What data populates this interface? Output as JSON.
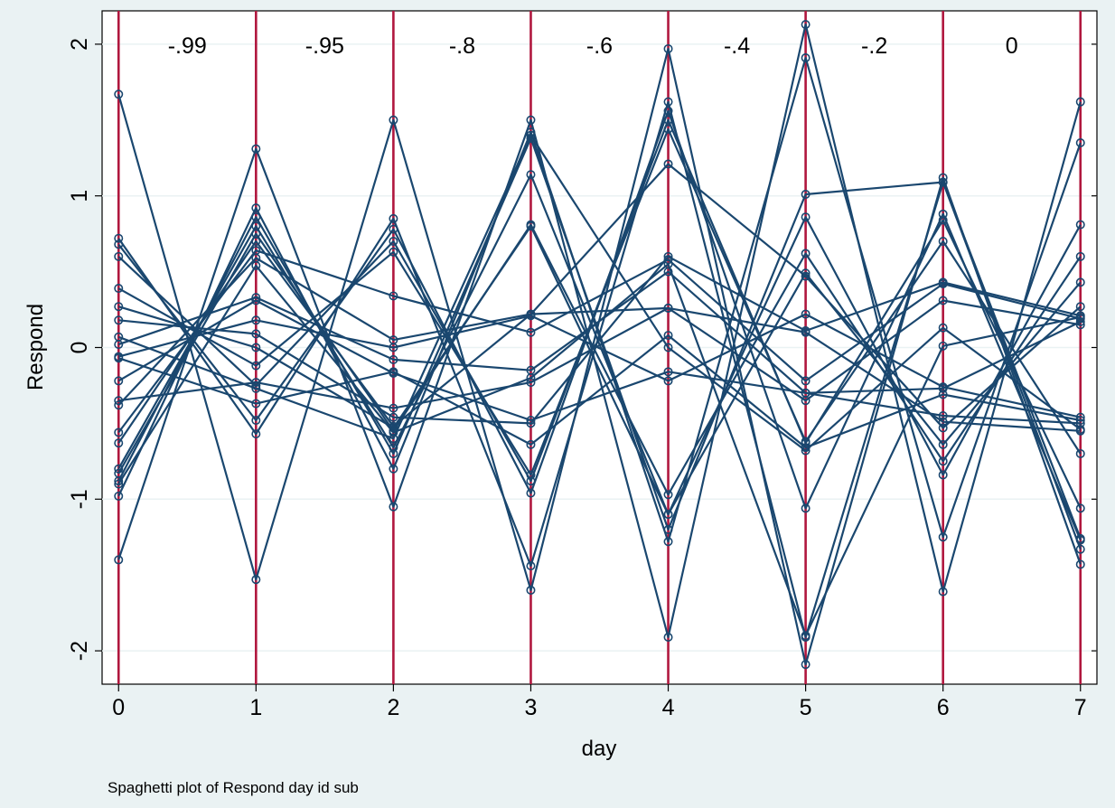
{
  "chart_data": {
    "type": "line",
    "xlabel": "day",
    "ylabel": "Respond",
    "note": "Spaghetti plot of Respond day id sub",
    "x_ticks": [
      "0",
      "1",
      "2",
      "3",
      "4",
      "5",
      "6",
      "7"
    ],
    "y_ticks": [
      "-2",
      "-1",
      "0",
      "1",
      "2"
    ],
    "xlim": [
      -0.12,
      7.12
    ],
    "ylim": [
      -2.22,
      2.22
    ],
    "grid": true,
    "marker": "hollow-circle",
    "colors": {
      "background": "#eaf2f3",
      "plot": "#ffffff",
      "grid": "#eaf2f3",
      "series": "#1a476f",
      "reference_lines": "#b0173e"
    },
    "reference_lines_x": [
      0,
      1,
      2,
      3,
      4,
      5,
      6,
      7
    ],
    "annotations": [
      {
        "x": 0.5,
        "y": 2.0,
        "text": "-.99"
      },
      {
        "x": 1.5,
        "y": 2.0,
        "text": "-.95"
      },
      {
        "x": 2.5,
        "y": 2.0,
        "text": "-.8"
      },
      {
        "x": 3.5,
        "y": 2.0,
        "text": "-.6"
      },
      {
        "x": 4.5,
        "y": 2.0,
        "text": "-.4"
      },
      {
        "x": 5.5,
        "y": 2.0,
        "text": "-.2"
      },
      {
        "x": 6.5,
        "y": 2.0,
        "text": "0"
      }
    ],
    "x": [
      0,
      1,
      2,
      3,
      4,
      5,
      6,
      7
    ],
    "series": [
      {
        "values": [
          1.67,
          -1.53,
          1.5,
          -1.6,
          1.97,
          -2.09,
          1.12,
          -1.43
        ]
      },
      {
        "values": [
          -1.4,
          1.31,
          -1.05,
          1.5,
          -1.91,
          2.13,
          -1.61,
          1.62
        ]
      },
      {
        "values": [
          0.72,
          -0.57,
          0.85,
          -1.44,
          1.62,
          -1.91,
          1.09,
          -1.33
        ]
      },
      {
        "values": [
          -0.98,
          0.92,
          -0.8,
          1.42,
          -1.28,
          1.91,
          -1.25,
          1.35
        ]
      },
      {
        "values": [
          0.68,
          -0.48,
          0.78,
          -0.96,
          1.56,
          -1.06,
          0.88,
          -1.27
        ]
      },
      {
        "values": [
          -0.88,
          0.86,
          -0.7,
          1.38,
          -1.2,
          1.01,
          1.09,
          -1.26
        ]
      },
      {
        "values": [
          0.6,
          -0.25,
          0.7,
          -0.88,
          1.5,
          -0.63,
          0.84,
          -1.06
        ]
      },
      {
        "values": [
          -0.8,
          0.8,
          -0.66,
          1.14,
          -1.1,
          0.86,
          -0.84,
          0.81
        ]
      },
      {
        "values": [
          0.39,
          -0.12,
          0.63,
          -0.84,
          1.44,
          -0.62,
          0.7,
          -0.7
        ]
      },
      {
        "values": [
          -0.83,
          0.75,
          -0.55,
          0.81,
          -0.97,
          0.62,
          -0.75,
          0.6
        ]
      },
      {
        "values": [
          0.27,
          0.0,
          -0.53,
          0.8,
          -1.1,
          0.49,
          -0.64,
          0.43
        ]
      },
      {
        "values": [
          -0.63,
          0.7,
          -0.52,
          0.22,
          1.21,
          0.47,
          -0.53,
          0.27
        ]
      },
      {
        "values": [
          0.18,
          0.09,
          -0.46,
          -0.5,
          0.6,
          0.11,
          0.43,
          0.21
        ]
      },
      {
        "values": [
          -0.56,
          0.64,
          0.34,
          0.1,
          0.58,
          -0.22,
          0.42,
          0.19
        ]
      },
      {
        "values": [
          0.02,
          0.33,
          -0.08,
          -0.15,
          0.5,
          -0.3,
          -0.27,
          0.17
        ]
      },
      {
        "values": [
          -0.38,
          0.59,
          0.05,
          0.22,
          0.26,
          -0.35,
          0.31,
          0.15
        ]
      },
      {
        "values": [
          -0.06,
          0.18,
          0.0,
          0.21,
          -0.22,
          0.22,
          -0.26,
          -0.46
        ]
      },
      {
        "values": [
          -0.22,
          0.31,
          -0.17,
          -0.48,
          -0.16,
          -0.3,
          -0.45,
          -0.5
        ]
      },
      {
        "values": [
          -0.35,
          -0.23,
          -0.4,
          -0.23,
          0.26,
          0.1,
          -0.49,
          -0.55
        ]
      },
      {
        "values": [
          -0.07,
          -0.37,
          -0.16,
          -0.64,
          0.08,
          -0.66,
          -0.31,
          -0.48
        ]
      },
      {
        "values": [
          0.07,
          -0.27,
          -0.6,
          1.4,
          0.0,
          -0.68,
          0.13,
          -0.54
        ]
      },
      {
        "values": [
          -0.9,
          0.54,
          -0.56,
          -0.2,
          0.55,
          -1.9,
          0.01,
          0.2
        ]
      }
    ]
  }
}
